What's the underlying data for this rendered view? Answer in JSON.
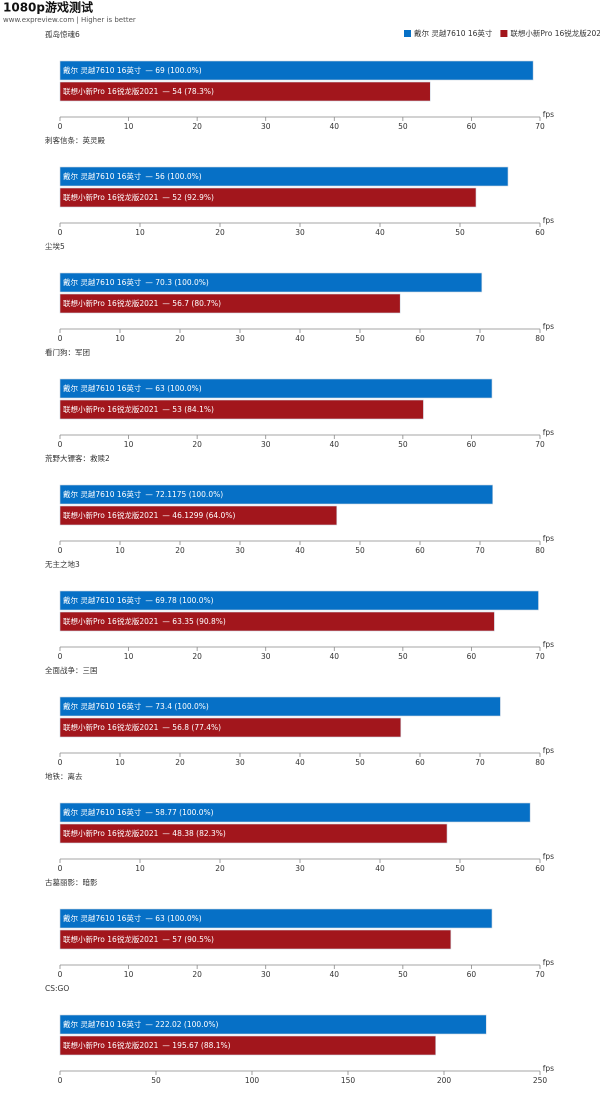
{
  "title": "1080p游戏测试",
  "subtitle": "www.expreview.com | Higher is better",
  "legend": "top-right",
  "chart_data": [
    {
      "type": "bar",
      "title": "孤岛惊魂6",
      "xlabel": "fps",
      "xlim": [
        0,
        70
      ],
      "xticks": [
        0,
        10,
        20,
        30,
        40,
        50,
        60,
        70
      ],
      "series": [
        {
          "name": "戴尔 灵越7610 16英寸",
          "color": "#0670c6",
          "values": [
            69
          ],
          "value_labels": [
            "— 69 (100.0%)"
          ]
        },
        {
          "name": "联想小新Pro 16锐龙版2021",
          "color": "#a2161c",
          "values": [
            54
          ],
          "value_labels": [
            "— 54 (78.3%)"
          ]
        }
      ]
    },
    {
      "type": "bar",
      "title": "刺客信条：英灵殿",
      "xlabel": "fps",
      "xlim": [
        0,
        60
      ],
      "xticks": [
        0,
        10,
        20,
        30,
        40,
        50,
        60
      ],
      "series": [
        {
          "name": "戴尔 灵越7610 16英寸",
          "color": "#0670c6",
          "values": [
            56
          ],
          "value_labels": [
            "— 56 (100.0%)"
          ]
        },
        {
          "name": "联想小新Pro 16锐龙版2021",
          "color": "#a2161c",
          "values": [
            52
          ],
          "value_labels": [
            "— 52 (92.9%)"
          ]
        }
      ]
    },
    {
      "type": "bar",
      "title": "尘埃5",
      "xlabel": "fps",
      "xlim": [
        0,
        80
      ],
      "xticks": [
        0,
        10,
        20,
        30,
        40,
        50,
        60,
        70,
        80
      ],
      "series": [
        {
          "name": "戴尔 灵越7610 16英寸",
          "color": "#0670c6",
          "values": [
            70.3
          ],
          "value_labels": [
            "— 70.3 (100.0%)"
          ]
        },
        {
          "name": "联想小新Pro 16锐龙版2021",
          "color": "#a2161c",
          "values": [
            56.7
          ],
          "value_labels": [
            "— 56.7 (80.7%)"
          ]
        }
      ]
    },
    {
      "type": "bar",
      "title": "看门狗：军团",
      "xlabel": "fps",
      "xlim": [
        0,
        70
      ],
      "xticks": [
        0,
        10,
        20,
        30,
        40,
        50,
        60,
        70
      ],
      "series": [
        {
          "name": "戴尔 灵越7610 16英寸",
          "color": "#0670c6",
          "values": [
            63
          ],
          "value_labels": [
            "— 63 (100.0%)"
          ]
        },
        {
          "name": "联想小新Pro 16锐龙版2021",
          "color": "#a2161c",
          "values": [
            53
          ],
          "value_labels": [
            "— 53 (84.1%)"
          ]
        }
      ]
    },
    {
      "type": "bar",
      "title": "荒野大镖客：救赎2",
      "xlabel": "fps",
      "xlim": [
        0,
        80
      ],
      "xticks": [
        0,
        10,
        20,
        30,
        40,
        50,
        60,
        70,
        80
      ],
      "series": [
        {
          "name": "戴尔 灵越7610 16英寸",
          "color": "#0670c6",
          "values": [
            72.1175
          ],
          "value_labels": [
            "— 72.1175 (100.0%)"
          ]
        },
        {
          "name": "联想小新Pro 16锐龙版2021",
          "color": "#a2161c",
          "values": [
            46.1299
          ],
          "value_labels": [
            "— 46.1299 (64.0%)"
          ]
        }
      ]
    },
    {
      "type": "bar",
      "title": "无主之地3",
      "xlabel": "fps",
      "xlim": [
        0,
        70
      ],
      "xticks": [
        0,
        10,
        20,
        30,
        40,
        50,
        60,
        70
      ],
      "series": [
        {
          "name": "戴尔 灵越7610 16英寸",
          "color": "#0670c6",
          "values": [
            69.78
          ],
          "value_labels": [
            "— 69.78 (100.0%)"
          ]
        },
        {
          "name": "联想小新Pro 16锐龙版2021",
          "color": "#a2161c",
          "values": [
            63.35
          ],
          "value_labels": [
            "— 63.35 (90.8%)"
          ]
        }
      ]
    },
    {
      "type": "bar",
      "title": "全面战争：三国",
      "xlabel": "fps",
      "xlim": [
        0,
        80
      ],
      "xticks": [
        0,
        10,
        20,
        30,
        40,
        50,
        60,
        70,
        80
      ],
      "series": [
        {
          "name": "戴尔 灵越7610 16英寸",
          "color": "#0670c6",
          "values": [
            73.4
          ],
          "value_labels": [
            "— 73.4 (100.0%)"
          ]
        },
        {
          "name": "联想小新Pro 16锐龙版2021",
          "color": "#a2161c",
          "values": [
            56.8
          ],
          "value_labels": [
            "— 56.8 (77.4%)"
          ]
        }
      ]
    },
    {
      "type": "bar",
      "title": "地铁：离去",
      "xlabel": "fps",
      "xlim": [
        0,
        60
      ],
      "xticks": [
        0,
        10,
        20,
        30,
        40,
        50,
        60
      ],
      "series": [
        {
          "name": "戴尔 灵越7610 16英寸",
          "color": "#0670c6",
          "values": [
            58.77
          ],
          "value_labels": [
            "— 58.77 (100.0%)"
          ]
        },
        {
          "name": "联想小新Pro 16锐龙版2021",
          "color": "#a2161c",
          "values": [
            48.38
          ],
          "value_labels": [
            "— 48.38 (82.3%)"
          ]
        }
      ]
    },
    {
      "type": "bar",
      "title": "古墓丽影：暗影",
      "xlabel": "fps",
      "xlim": [
        0,
        70
      ],
      "xticks": [
        0,
        10,
        20,
        30,
        40,
        50,
        60,
        70
      ],
      "series": [
        {
          "name": "戴尔 灵越7610 16英寸",
          "color": "#0670c6",
          "values": [
            63
          ],
          "value_labels": [
            "— 63 (100.0%)"
          ]
        },
        {
          "name": "联想小新Pro 16锐龙版2021",
          "color": "#a2161c",
          "values": [
            57
          ],
          "value_labels": [
            "— 57 (90.5%)"
          ]
        }
      ]
    },
    {
      "type": "bar",
      "title": "CS:GO",
      "xlabel": "fps",
      "xlim": [
        0,
        250
      ],
      "xticks": [
        0,
        50,
        100,
        150,
        200,
        250
      ],
      "series": [
        {
          "name": "戴尔 灵越7610 16英寸",
          "color": "#0670c6",
          "values": [
            222.02
          ],
          "value_labels": [
            "— 222.02 (100.0%)"
          ]
        },
        {
          "name": "联想小新Pro 16锐龙版2021",
          "color": "#a2161c",
          "values": [
            195.67
          ],
          "value_labels": [
            "— 195.67 (88.1%)"
          ]
        }
      ]
    }
  ]
}
